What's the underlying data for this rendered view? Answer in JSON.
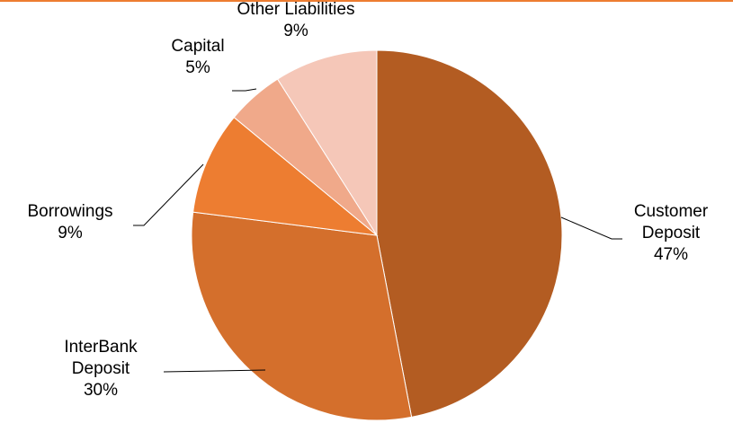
{
  "chart_data": {
    "type": "pie",
    "title": "",
    "slices": [
      {
        "label": [
          "Customer",
          "Deposit"
        ],
        "value": 47,
        "percent_label": "47%",
        "color": "#B35C22"
      },
      {
        "label": [
          "InterBank",
          "Deposit"
        ],
        "value": 30,
        "percent_label": "30%",
        "color": "#D46F2C"
      },
      {
        "label": [
          "Borrowings"
        ],
        "value": 9,
        "percent_label": "9%",
        "color": "#ED7D31"
      },
      {
        "label": [
          "Capital"
        ],
        "value": 5,
        "percent_label": "5%",
        "color": "#F0A98A"
      },
      {
        "label": [
          "Other Liabilities"
        ],
        "value": 9,
        "percent_label": "9%",
        "color": "#F5C7B8"
      }
    ],
    "start_angle_deg": 0,
    "direction": "clockwise",
    "legend": "none",
    "top_rule_color": "#ED7D31"
  }
}
